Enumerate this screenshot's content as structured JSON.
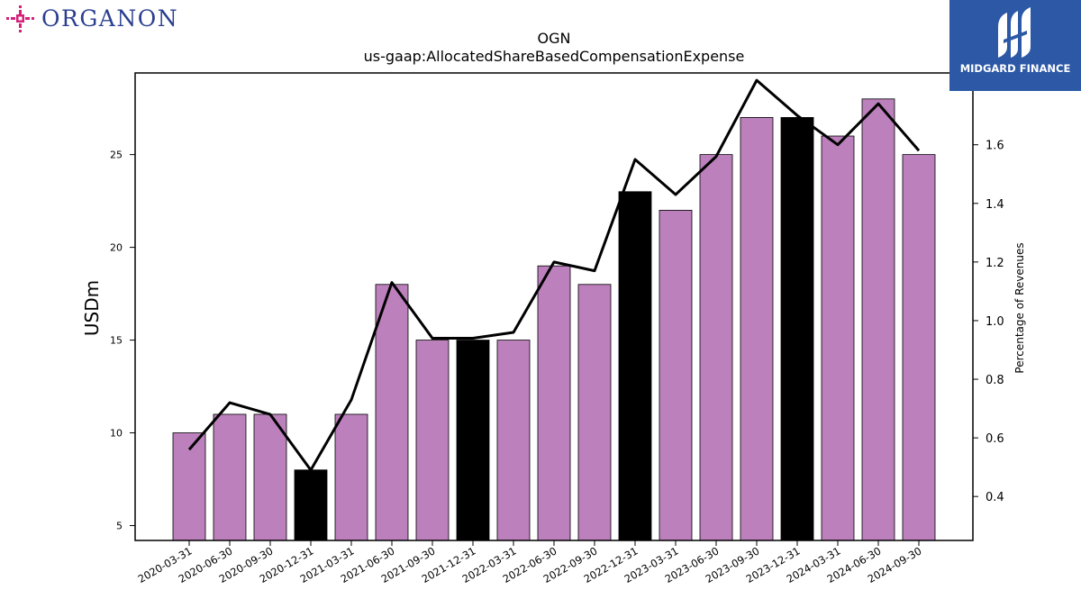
{
  "branding": {
    "left_logo_text": "ORGANON",
    "right_logo_text": "MIDGARD FINANCE",
    "left_logo_icon": "organon-cross-icon",
    "right_logo_icon": "midgard-mark-icon",
    "colors": {
      "organon_icon": "#d6207a",
      "organon_text": "#2b3f8f",
      "midgard_bg": "#2c58a6"
    }
  },
  "chart_data": {
    "type": "bar",
    "title": "OGN",
    "subtitle": "us-gaap:AllocatedShareBasedCompensationExpense",
    "ylabel": "USDm",
    "y2label": "Percentage of Revenues",
    "categories": [
      "2020-03-31",
      "2020-06-30",
      "2020-09-30",
      "2020-12-31",
      "2021-03-31",
      "2021-06-30",
      "2021-09-30",
      "2021-12-31",
      "2022-03-31",
      "2022-06-30",
      "2022-09-30",
      "2022-12-31",
      "2023-03-31",
      "2023-06-30",
      "2023-09-30",
      "2023-12-31",
      "2024-03-31",
      "2024-06-30",
      "2024-09-30"
    ],
    "series": [
      {
        "kind": "bar",
        "values": [
          10,
          11,
          11,
          8,
          11,
          18,
          15,
          15,
          15,
          19,
          18,
          23,
          22,
          25,
          27,
          27,
          26,
          28,
          25
        ],
        "highlight": [
          false,
          false,
          false,
          true,
          false,
          false,
          false,
          true,
          false,
          false,
          false,
          true,
          false,
          false,
          false,
          true,
          false,
          false,
          false
        ]
      },
      {
        "kind": "line",
        "axis": "right",
        "values": [
          0.56,
          0.72,
          0.68,
          0.49,
          0.73,
          1.13,
          0.94,
          0.94,
          0.96,
          1.2,
          1.17,
          1.55,
          1.43,
          1.56,
          1.82,
          1.7,
          1.6,
          1.74,
          1.58
        ]
      }
    ],
    "ylim": [
      4.2,
      29.4
    ],
    "y2lim": [
      0.25,
      1.845
    ],
    "yticks": [
      5,
      10,
      15,
      20,
      25
    ],
    "y2ticks": [
      0.4,
      0.6,
      0.8,
      1.0,
      1.2,
      1.4,
      1.6
    ],
    "y2tick_labels": [
      "0.4",
      "0.6",
      "0.8",
      "1.0",
      "1.2",
      "1.4",
      "1.6"
    ],
    "colors": {
      "bar": "#bc80bd",
      "bar_highlight": "#000000",
      "line": "#000000",
      "edge": "#000000"
    },
    "grid": false
  }
}
